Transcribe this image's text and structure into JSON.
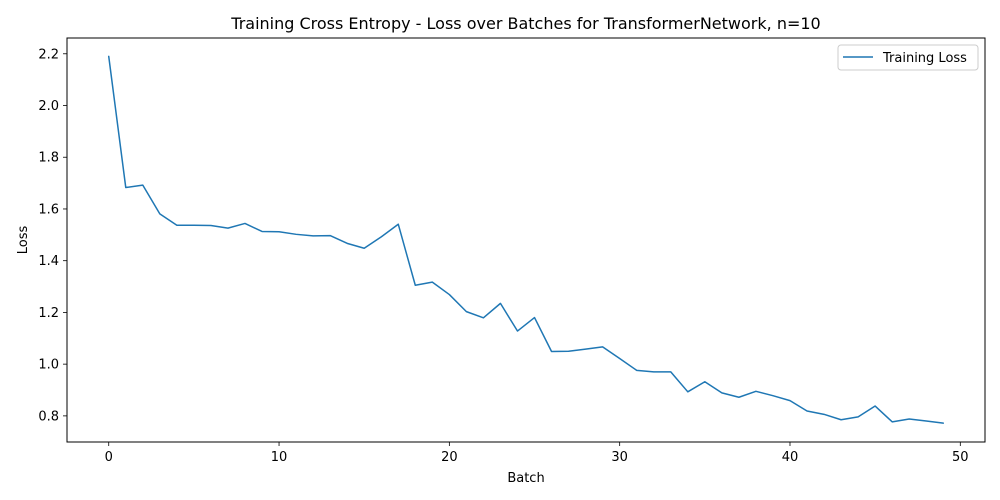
{
  "chart_data": {
    "type": "line",
    "title": "Training Cross Entropy - Loss over Batches for TransformerNetwork, n=10",
    "xlabel": "Batch",
    "ylabel": "Loss",
    "xlim": [
      -2.45,
      51.45
    ],
    "ylim": [
      0.699,
      2.261
    ],
    "x_ticks": [
      0,
      10,
      20,
      30,
      40,
      50
    ],
    "x_tick_labels": [
      "0",
      "10",
      "20",
      "30",
      "40",
      "50"
    ],
    "y_ticks": [
      0.8,
      1.0,
      1.2,
      1.4,
      1.6,
      1.8,
      2.0,
      2.2
    ],
    "y_tick_labels": [
      "0.8",
      "1.0",
      "1.2",
      "1.4",
      "1.6",
      "1.8",
      "2.0",
      "2.2"
    ],
    "grid": false,
    "legend_position": "top-right",
    "series": [
      {
        "name": "Training Loss",
        "color": "#1f77b4",
        "x": [
          0,
          1,
          2,
          3,
          4,
          5,
          6,
          7,
          8,
          9,
          10,
          11,
          12,
          13,
          14,
          15,
          16,
          17,
          18,
          19,
          20,
          21,
          22,
          23,
          24,
          25,
          26,
          27,
          28,
          29,
          30,
          31,
          32,
          33,
          34,
          35,
          36,
          37,
          38,
          39,
          40,
          41,
          42,
          43,
          44,
          45,
          46,
          47,
          48,
          49
        ],
        "values": [
          2.19,
          1.683,
          1.692,
          1.581,
          1.537,
          1.537,
          1.536,
          1.526,
          1.544,
          1.513,
          1.512,
          1.502,
          1.496,
          1.497,
          1.467,
          1.448,
          1.492,
          1.541,
          1.305,
          1.317,
          1.269,
          1.203,
          1.179,
          1.235,
          1.128,
          1.18,
          1.049,
          1.05,
          1.058,
          1.067,
          1.022,
          0.976,
          0.97,
          0.97,
          0.893,
          0.932,
          0.889,
          0.872,
          0.895,
          0.878,
          0.859,
          0.819,
          0.806,
          0.785,
          0.796,
          0.838,
          0.777,
          0.788,
          0.78,
          0.772
        ]
      }
    ]
  }
}
